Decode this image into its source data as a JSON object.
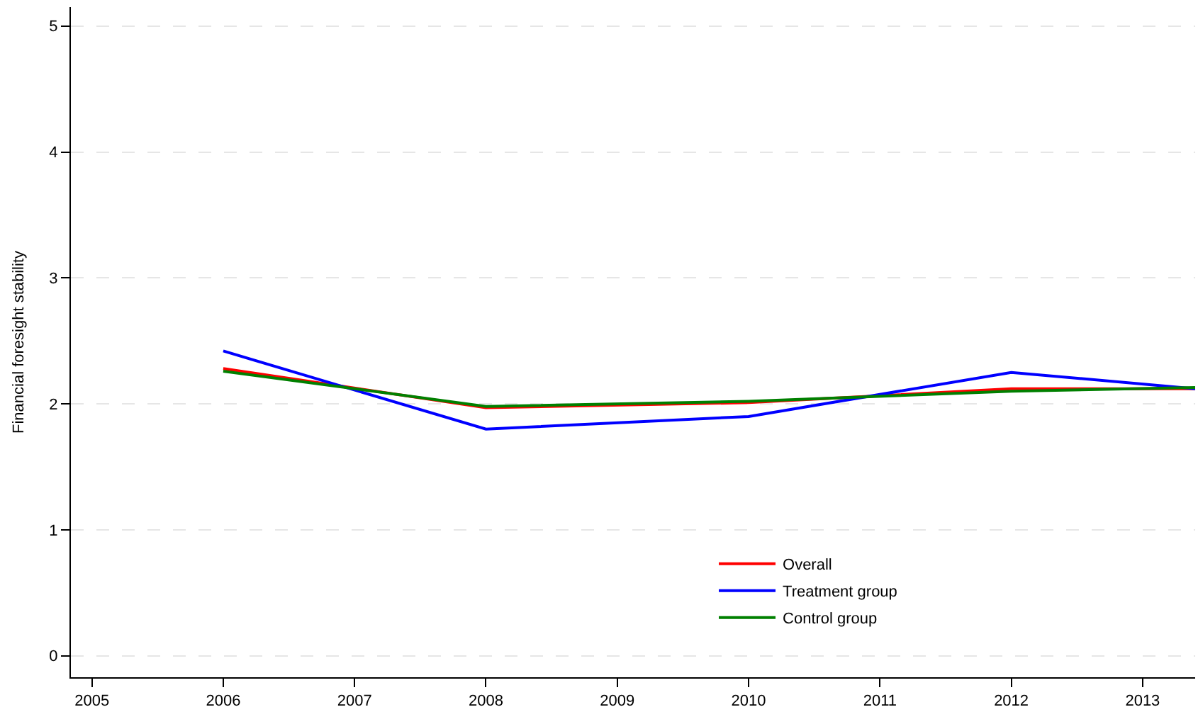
{
  "chart_data": {
    "type": "line",
    "ylabel": "Financial foresight stability",
    "x": [
      2006,
      2008,
      2010,
      2012,
      2013.4
    ],
    "series": [
      {
        "name": "Overall",
        "color": "#ff0000",
        "values": [
          2.28,
          1.97,
          2.01,
          2.12,
          2.12
        ]
      },
      {
        "name": "Treatment group",
        "color": "#0000ff",
        "values": [
          2.42,
          1.8,
          1.9,
          2.25,
          2.12
        ]
      },
      {
        "name": "Control group",
        "color": "#008000",
        "values": [
          2.26,
          1.98,
          2.02,
          2.1,
          2.13
        ]
      }
    ],
    "xlim": [
      2004.84,
      2013.4
    ],
    "xticks": [
      2005,
      2006,
      2007,
      2008,
      2009,
      2010,
      2011,
      2012,
      2013
    ],
    "ylim": [
      -0.17,
      5.15
    ],
    "yticks": [
      0,
      1,
      2,
      3,
      4,
      5
    ],
    "grid": "y",
    "legend": "bottom right",
    "marker": "none",
    "line_style": "solid"
  }
}
